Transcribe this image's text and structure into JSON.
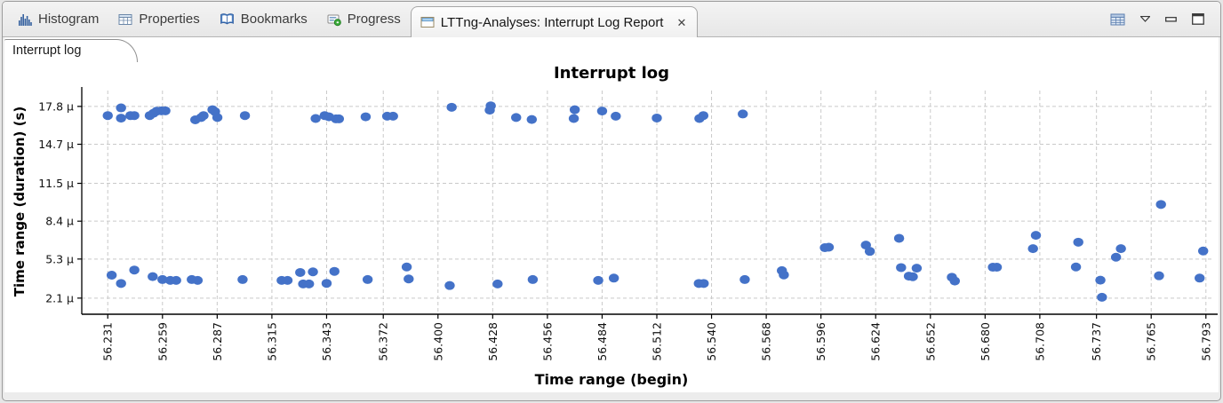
{
  "tabbar": {
    "tabs": [
      {
        "label": "Histogram",
        "icon": "histogram-icon"
      },
      {
        "label": "Properties",
        "icon": "table-icon"
      },
      {
        "label": "Bookmarks",
        "icon": "book-icon"
      },
      {
        "label": "Progress",
        "icon": "progress-icon"
      }
    ],
    "active_tab": {
      "label": "LTTng-Analyses: Interrupt Log Report",
      "icon": "report-window-icon",
      "close_glyph": "✕"
    }
  },
  "toolbar": {
    "icons": [
      "view-table-icon",
      "view-menu-icon",
      "minimize-icon",
      "maximize-icon"
    ]
  },
  "subtab": {
    "label": "Interrupt log"
  },
  "chart_data": {
    "type": "scatter",
    "title": "Interrupt log",
    "xlabel": "Time range (begin)",
    "ylabel": "Time range (duration) (s)",
    "grid": "dashed",
    "legend": "none",
    "xlim": [
      56.2177,
      56.7972
    ],
    "ylim_us": [
      0.78,
      19.1
    ],
    "point_color": "#4472c8",
    "grid_color": "#c9c9c9",
    "axis_color": "#000000",
    "x_ticks": [
      {
        "v": 56.231,
        "label": "56.231"
      },
      {
        "v": 56.259,
        "label": "56.259"
      },
      {
        "v": 56.287,
        "label": "56.287"
      },
      {
        "v": 56.315,
        "label": "56.315"
      },
      {
        "v": 56.343,
        "label": "56.343"
      },
      {
        "v": 56.372,
        "label": "56.372"
      },
      {
        "v": 56.4,
        "label": "56.400"
      },
      {
        "v": 56.428,
        "label": "56.428"
      },
      {
        "v": 56.456,
        "label": "56.456"
      },
      {
        "v": 56.484,
        "label": "56.484"
      },
      {
        "v": 56.512,
        "label": "56.512"
      },
      {
        "v": 56.54,
        "label": "56.540"
      },
      {
        "v": 56.568,
        "label": "56.568"
      },
      {
        "v": 56.596,
        "label": "56.596"
      },
      {
        "v": 56.624,
        "label": "56.624"
      },
      {
        "v": 56.652,
        "label": "56.652"
      },
      {
        "v": 56.68,
        "label": "56.680"
      },
      {
        "v": 56.708,
        "label": "56.708"
      },
      {
        "v": 56.737,
        "label": "56.737"
      },
      {
        "v": 56.765,
        "label": "56.765"
      },
      {
        "v": 56.793,
        "label": "56.793"
      }
    ],
    "y_ticks": [
      {
        "v": 2.1,
        "label": "2.1 µ"
      },
      {
        "v": 5.3,
        "label": "5.3 µ"
      },
      {
        "v": 8.4,
        "label": "8.4 µ"
      },
      {
        "v": 11.5,
        "label": "11.5 µ"
      },
      {
        "v": 14.7,
        "label": "14.7 µ"
      },
      {
        "v": 17.8,
        "label": "17.8 µ"
      }
    ],
    "points_us": [
      [
        56.231,
        17.05
      ],
      [
        56.2378,
        17.68
      ],
      [
        56.2378,
        16.84
      ],
      [
        56.2426,
        17.05
      ],
      [
        56.2446,
        17.05
      ],
      [
        56.2525,
        17.05
      ],
      [
        56.2544,
        17.24
      ],
      [
        56.256,
        17.41
      ],
      [
        56.2585,
        17.44
      ],
      [
        56.2605,
        17.44
      ],
      [
        56.2758,
        16.7
      ],
      [
        56.2788,
        16.89
      ],
      [
        56.28,
        17.05
      ],
      [
        56.2846,
        17.53
      ],
      [
        56.2859,
        17.37
      ],
      [
        56.2871,
        16.89
      ],
      [
        56.3012,
        17.05
      ],
      [
        56.3374,
        16.81
      ],
      [
        56.342,
        17.05
      ],
      [
        56.3442,
        16.95
      ],
      [
        56.3478,
        16.78
      ],
      [
        56.3493,
        16.78
      ],
      [
        56.363,
        16.95
      ],
      [
        56.374,
        17.0
      ],
      [
        56.377,
        17.0
      ],
      [
        56.407,
        17.73
      ],
      [
        56.4265,
        17.49
      ],
      [
        56.427,
        17.85
      ],
      [
        56.44,
        16.89
      ],
      [
        56.448,
        16.73
      ],
      [
        56.4695,
        16.81
      ],
      [
        56.47,
        17.53
      ],
      [
        56.484,
        17.42
      ],
      [
        56.491,
        17.0
      ],
      [
        56.512,
        16.85
      ],
      [
        56.5338,
        16.81
      ],
      [
        56.5358,
        17.05
      ],
      [
        56.556,
        17.18
      ],
      [
        56.233,
        3.98
      ],
      [
        56.2378,
        3.3
      ],
      [
        56.2446,
        4.4
      ],
      [
        56.254,
        3.86
      ],
      [
        56.259,
        3.62
      ],
      [
        56.263,
        3.55
      ],
      [
        56.266,
        3.55
      ],
      [
        56.274,
        3.62
      ],
      [
        56.277,
        3.55
      ],
      [
        56.3,
        3.62
      ],
      [
        56.32,
        3.55
      ],
      [
        56.323,
        3.55
      ],
      [
        56.3295,
        4.2
      ],
      [
        56.331,
        3.26
      ],
      [
        56.334,
        3.26
      ],
      [
        56.336,
        4.25
      ],
      [
        56.343,
        3.31
      ],
      [
        56.347,
        4.29
      ],
      [
        56.364,
        3.62
      ],
      [
        56.384,
        4.65
      ],
      [
        56.385,
        3.67
      ],
      [
        56.406,
        3.13
      ],
      [
        56.4305,
        3.26
      ],
      [
        56.4485,
        3.62
      ],
      [
        56.482,
        3.55
      ],
      [
        56.49,
        3.74
      ],
      [
        56.5335,
        3.3
      ],
      [
        56.536,
        3.3
      ],
      [
        56.557,
        3.62
      ],
      [
        56.576,
        4.35
      ],
      [
        56.577,
        4.0
      ],
      [
        56.598,
        6.23
      ],
      [
        56.6,
        6.27
      ],
      [
        56.619,
        6.44
      ],
      [
        56.621,
        5.93
      ],
      [
        56.636,
        7.0
      ],
      [
        56.637,
        4.6
      ],
      [
        56.641,
        3.9
      ],
      [
        56.643,
        3.85
      ],
      [
        56.645,
        4.55
      ],
      [
        56.663,
        3.81
      ],
      [
        56.6645,
        3.5
      ],
      [
        56.684,
        4.63
      ],
      [
        56.686,
        4.63
      ],
      [
        56.7045,
        6.15
      ],
      [
        56.706,
        7.24
      ],
      [
        56.7265,
        4.65
      ],
      [
        56.7277,
        6.68
      ],
      [
        56.739,
        3.57
      ],
      [
        56.7398,
        2.17
      ],
      [
        56.747,
        5.45
      ],
      [
        56.7495,
        6.15
      ],
      [
        56.769,
        3.93
      ],
      [
        56.77,
        9.77
      ],
      [
        56.7898,
        3.74
      ],
      [
        56.7916,
        5.96
      ]
    ]
  }
}
